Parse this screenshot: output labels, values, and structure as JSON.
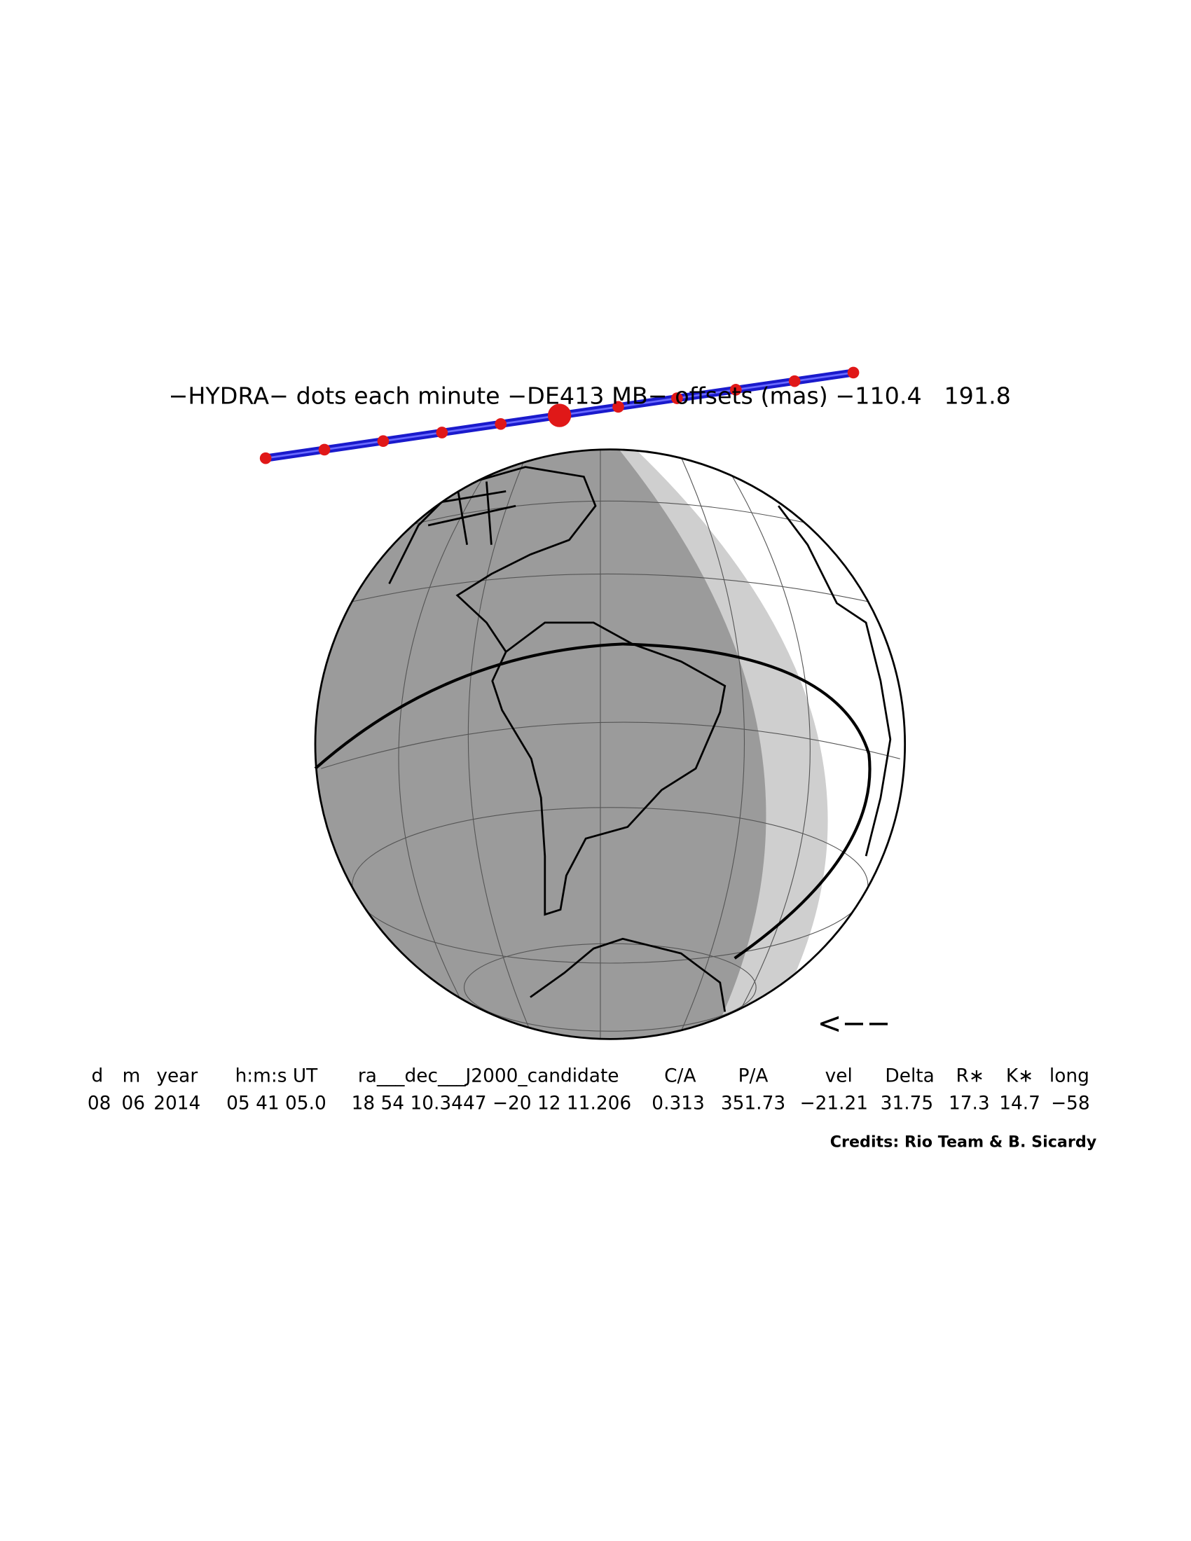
{
  "title": "−HYDRA− dots each minute −DE413 MB− offsets (mas) −110.4   191.8",
  "table": {
    "header": [
      "d",
      "m",
      "year",
      "h:m:s UT",
      "ra___dec___J2000_candidate",
      "C/A",
      "P/A",
      "vel",
      "Delta",
      "R∗",
      "K∗",
      "long"
    ],
    "row": [
      "08",
      "06",
      "2014",
      "05 41 05.0",
      "18 54 10.3447 −20 12 11.206",
      "0.313",
      "351.73",
      "−21.21",
      "31.75",
      "17.3",
      "14.7",
      "−58"
    ]
  },
  "direction": "<−−",
  "credits": "Credits: Rio Team & B. Sicardy"
}
